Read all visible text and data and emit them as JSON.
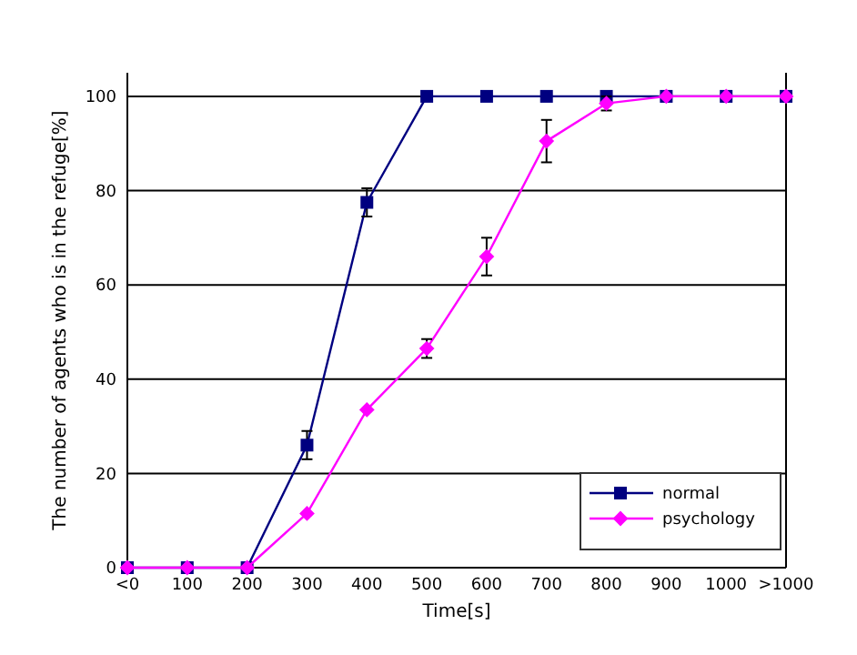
{
  "chart_data": {
    "type": "line",
    "xlabel": "Time[s]",
    "ylabel": "The number of agents who is in the refuge[%]",
    "categories": [
      "<0",
      "100",
      "200",
      "300",
      "400",
      "500",
      "600",
      "700",
      "800",
      "900",
      "1000",
      ">1000"
    ],
    "ylim": [
      0,
      105
    ],
    "yticks": [
      0,
      20,
      40,
      60,
      80,
      100
    ],
    "grid": "y",
    "legend": "bottom right",
    "line_style": "solid",
    "series": [
      {
        "name": "normal",
        "color": "#000080",
        "marker": "square",
        "values": [
          0,
          0,
          0,
          26,
          77.5,
          100,
          100,
          100,
          100,
          100,
          100,
          100
        ],
        "errors": [
          null,
          null,
          null,
          3,
          3,
          null,
          null,
          null,
          null,
          null,
          null,
          null
        ]
      },
      {
        "name": "psychology",
        "color": "#ff00ff",
        "marker": "diamond",
        "values": [
          0,
          0,
          0,
          11.5,
          33.5,
          46.5,
          66,
          90.5,
          98.5,
          100,
          100,
          100
        ],
        "errors": [
          null,
          null,
          null,
          null,
          null,
          2,
          4,
          4.5,
          [
            97,
            100
          ],
          null,
          null,
          null
        ]
      }
    ]
  }
}
